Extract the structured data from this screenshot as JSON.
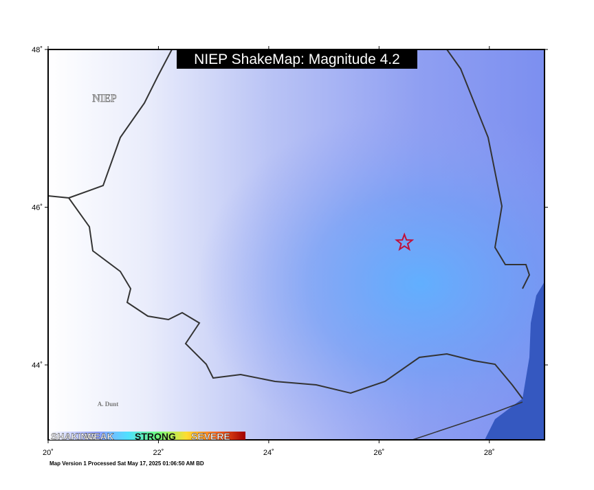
{
  "map": {
    "title": "NIEP ShakeMap: Magnitude 4.2",
    "agency_label": "NIEP",
    "place_label": "A. Dunt",
    "xlim": [
      20,
      29
    ],
    "ylim": [
      43.05,
      48
    ],
    "xticks": [
      {
        "value": 20,
        "label": "20˚"
      },
      {
        "value": 22,
        "label": "22˚"
      },
      {
        "value": 24,
        "label": "24˚"
      },
      {
        "value": 26,
        "label": "26˚"
      },
      {
        "value": 28,
        "label": "28˚"
      }
    ],
    "yticks": [
      {
        "value": 44,
        "label": "44˚"
      },
      {
        "value": 46,
        "label": "46˚"
      },
      {
        "value": 48,
        "label": "48˚"
      }
    ],
    "epicenter": {
      "lon": 26.46,
      "lat": 45.55
    },
    "legend": [
      "SHAKING",
      "WEAK",
      "STRONG",
      "SEVERE"
    ],
    "footer": "Map Version 1 Processed Sat May 17, 2025 01:06:50 AM BD"
  }
}
